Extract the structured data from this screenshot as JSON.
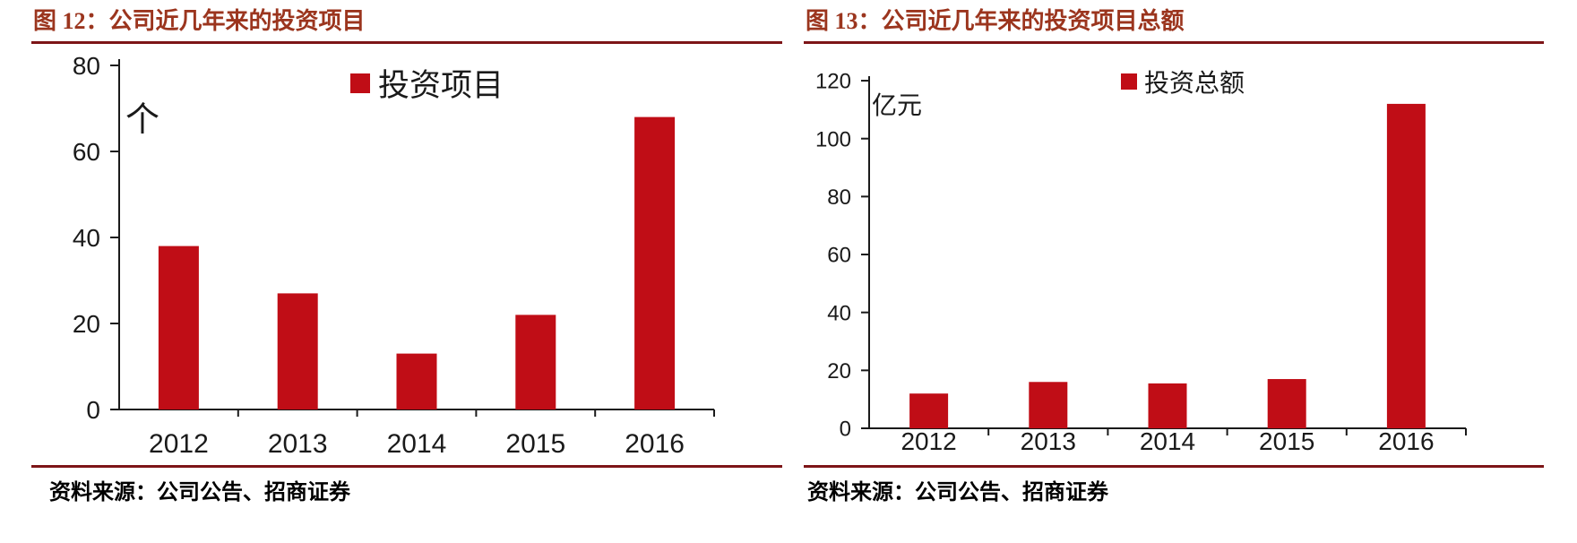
{
  "colors": {
    "bar": "#C00D16",
    "figure_title": "#9B351E",
    "rule": "#7D1517",
    "axis_text": "#1A1A1A",
    "source_text": "#000000"
  },
  "sources": [
    "资料来源：公司公告、招商证券",
    "资料来源：公司公告、招商证券"
  ],
  "chart_data": [
    {
      "type": "bar",
      "title": "图 12：公司近几年来的投资项目",
      "categories": [
        "2012",
        "2013",
        "2014",
        "2015",
        "2016"
      ],
      "series": [
        {
          "name": "投资项目",
          "values": [
            38,
            27,
            13,
            22,
            68
          ]
        }
      ],
      "xlabel": "",
      "ylabel": "个",
      "ylim": [
        0,
        80
      ],
      "yticks": [
        0,
        20,
        40,
        60,
        80
      ],
      "legend_position": "top-center",
      "grid": false
    },
    {
      "type": "bar",
      "title": "图 13：公司近几年来的投资项目总额",
      "categories": [
        "2012",
        "2013",
        "2014",
        "2015",
        "2016"
      ],
      "series": [
        {
          "name": "投资总额",
          "values": [
            12,
            16,
            15.5,
            17,
            112
          ]
        }
      ],
      "xlabel": "",
      "ylabel": "亿元",
      "ylim": [
        0,
        120
      ],
      "yticks": [
        0,
        20,
        40,
        60,
        80,
        100,
        120
      ],
      "legend_position": "top-center",
      "grid": false
    }
  ]
}
